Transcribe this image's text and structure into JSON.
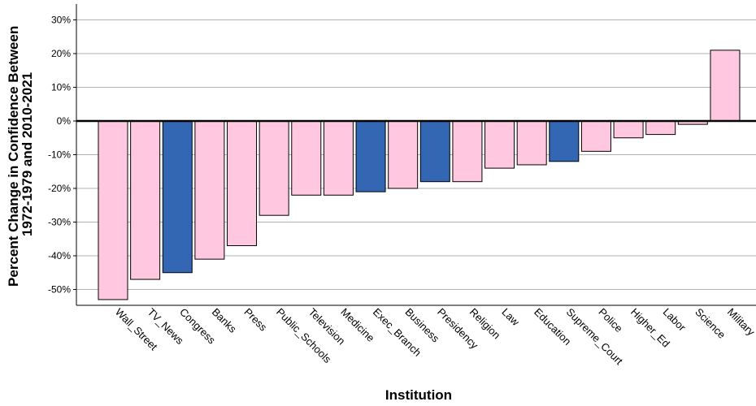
{
  "chart_data": {
    "type": "bar",
    "title": "",
    "xlabel": "Institution",
    "ylabel_lines": [
      "Percent Change in Confidence Between",
      "1972-1979 and 2010-2021"
    ],
    "ylim": [
      -54,
      35
    ],
    "yticks": [
      30,
      20,
      10,
      0,
      -10,
      -20,
      -30,
      -40,
      -50
    ],
    "ytick_labels": [
      "30%",
      "20%",
      "10%",
      "0%",
      "-10%",
      "-20%",
      "-30%",
      "-40%",
      "-50%"
    ],
    "grid": true,
    "categories": [
      "Wall_Street",
      "TV_News",
      "Congress",
      "Banks",
      "Press",
      "Public_Schools",
      "Television",
      "Medicine",
      "Exec_Branch",
      "Business",
      "Presidency",
      "Religion",
      "Law",
      "Education",
      "Supreme_Court",
      "Police",
      "Higher_Ed",
      "Labor",
      "Science",
      "Military"
    ],
    "values": [
      -53,
      -47,
      -45,
      -41,
      -37,
      -28,
      -22,
      -22,
      -21,
      -20,
      -18,
      -18,
      -14,
      -13,
      -12,
      -9,
      -5,
      -4,
      -1,
      21
    ],
    "highlighted": [
      "Congress",
      "Exec_Branch",
      "Presidency",
      "Supreme_Court"
    ],
    "colors": {
      "default_bar": "#ffc8e0",
      "highlight_bar": "#3366b3",
      "bar_stroke": "#000000",
      "grid": "#b3b3b3",
      "zero_line": "#000000"
    }
  }
}
